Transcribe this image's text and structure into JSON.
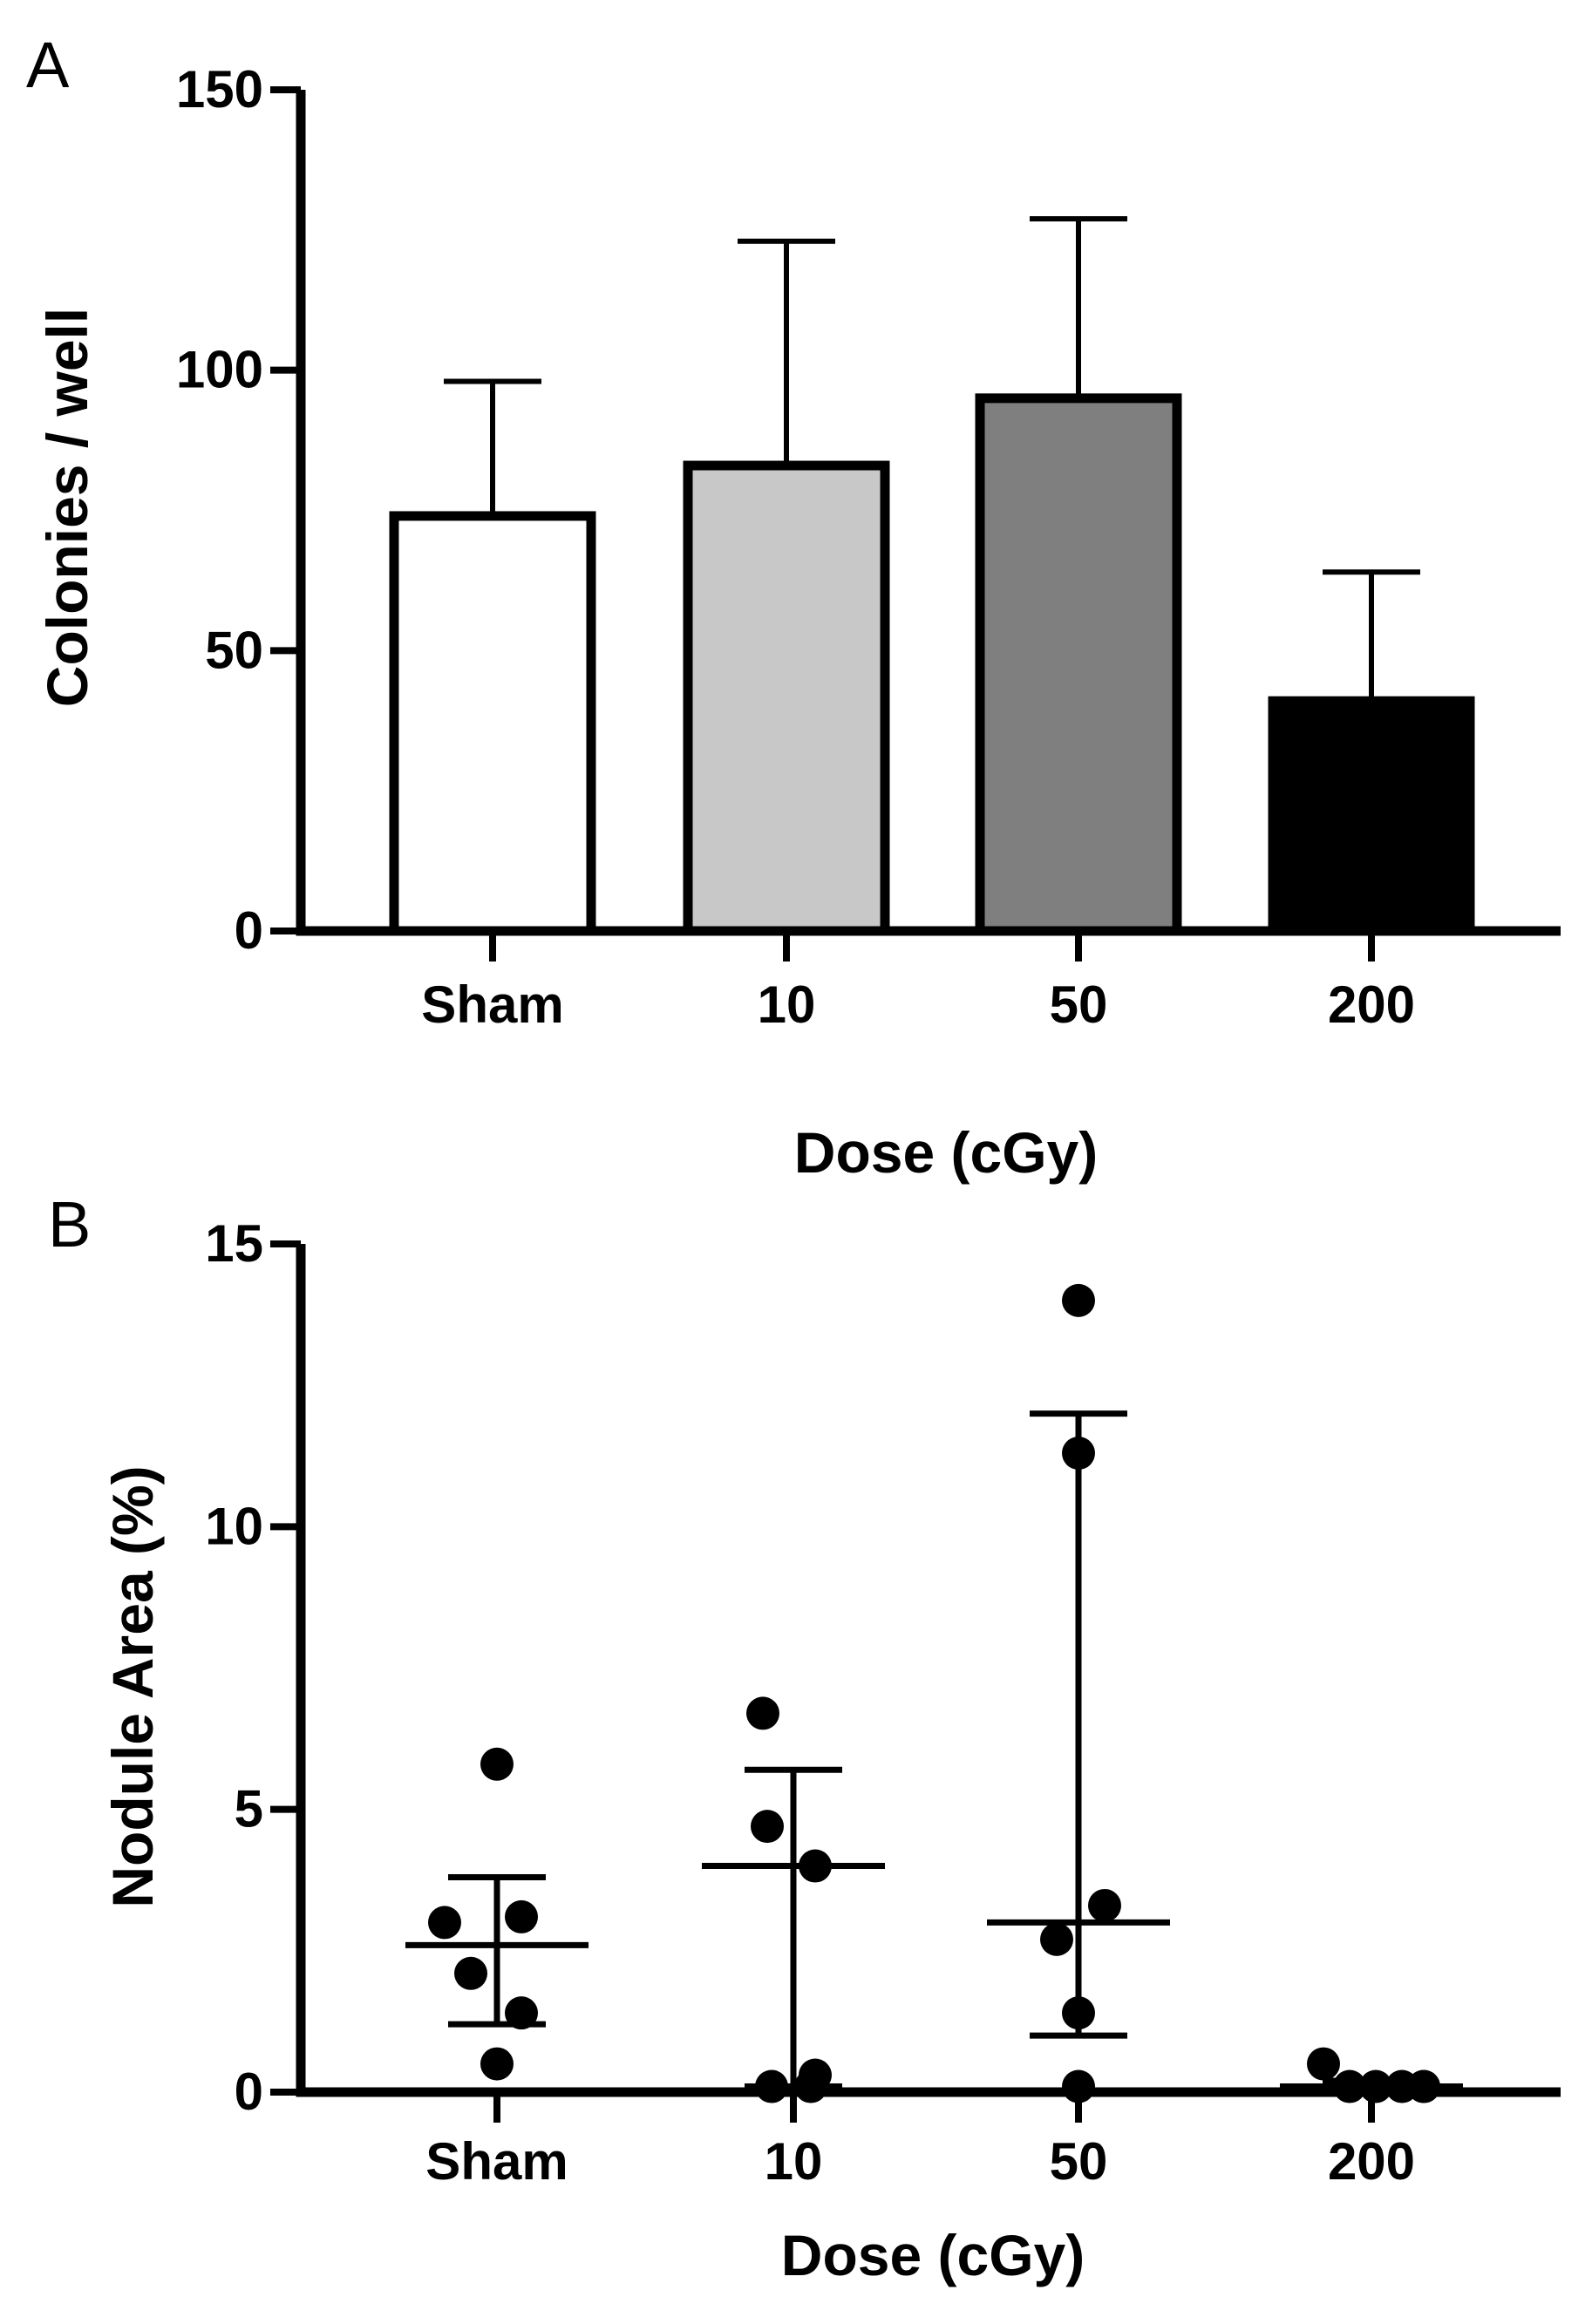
{
  "chart_data": [
    {
      "panel": "A",
      "type": "bar",
      "title": "",
      "xlabel": "Dose (cGy)",
      "ylabel": "Colonies / well",
      "ylim": [
        0,
        150
      ],
      "yticks": [
        0,
        50,
        100,
        150
      ],
      "categories": [
        "Sham",
        "10",
        "50",
        "200"
      ],
      "values": [
        74,
        83,
        95,
        41
      ],
      "error_upper": [
        98,
        123,
        127,
        64
      ],
      "bar_colors": [
        "#ffffff",
        "#c8c8c8",
        "#7f7f7f",
        "#000000"
      ],
      "grid": false
    },
    {
      "panel": "B",
      "type": "scatter",
      "title": "",
      "xlabel": "Dose (cGy)",
      "ylabel": "Nodule Area (%)",
      "ylim": [
        0,
        15
      ],
      "yticks": [
        0,
        5,
        10,
        15
      ],
      "categories": [
        "Sham",
        "10",
        "50",
        "200"
      ],
      "groups": [
        {
          "name": "Sham",
          "points": [
            5.8,
            3.1,
            3.0,
            2.1,
            1.4,
            0.5
          ],
          "center": 2.6,
          "low": 1.2,
          "high": 3.8
        },
        {
          "name": "10",
          "points": [
            6.7,
            4.7,
            4.0,
            0.3,
            0.1,
            0.1
          ],
          "center": 4.0,
          "low": 0.1,
          "high": 5.7
        },
        {
          "name": "50",
          "points": [
            14.0,
            11.3,
            3.3,
            2.7,
            1.4,
            0.1
          ],
          "center": 3.0,
          "low": 1.0,
          "high": 12.0
        },
        {
          "name": "200",
          "points": [
            0.5,
            0.1,
            0.1,
            0.1,
            0.1,
            0.1
          ],
          "center": 0.1,
          "low": 0.05,
          "high": 0.2
        }
      ],
      "grid": false
    }
  ]
}
